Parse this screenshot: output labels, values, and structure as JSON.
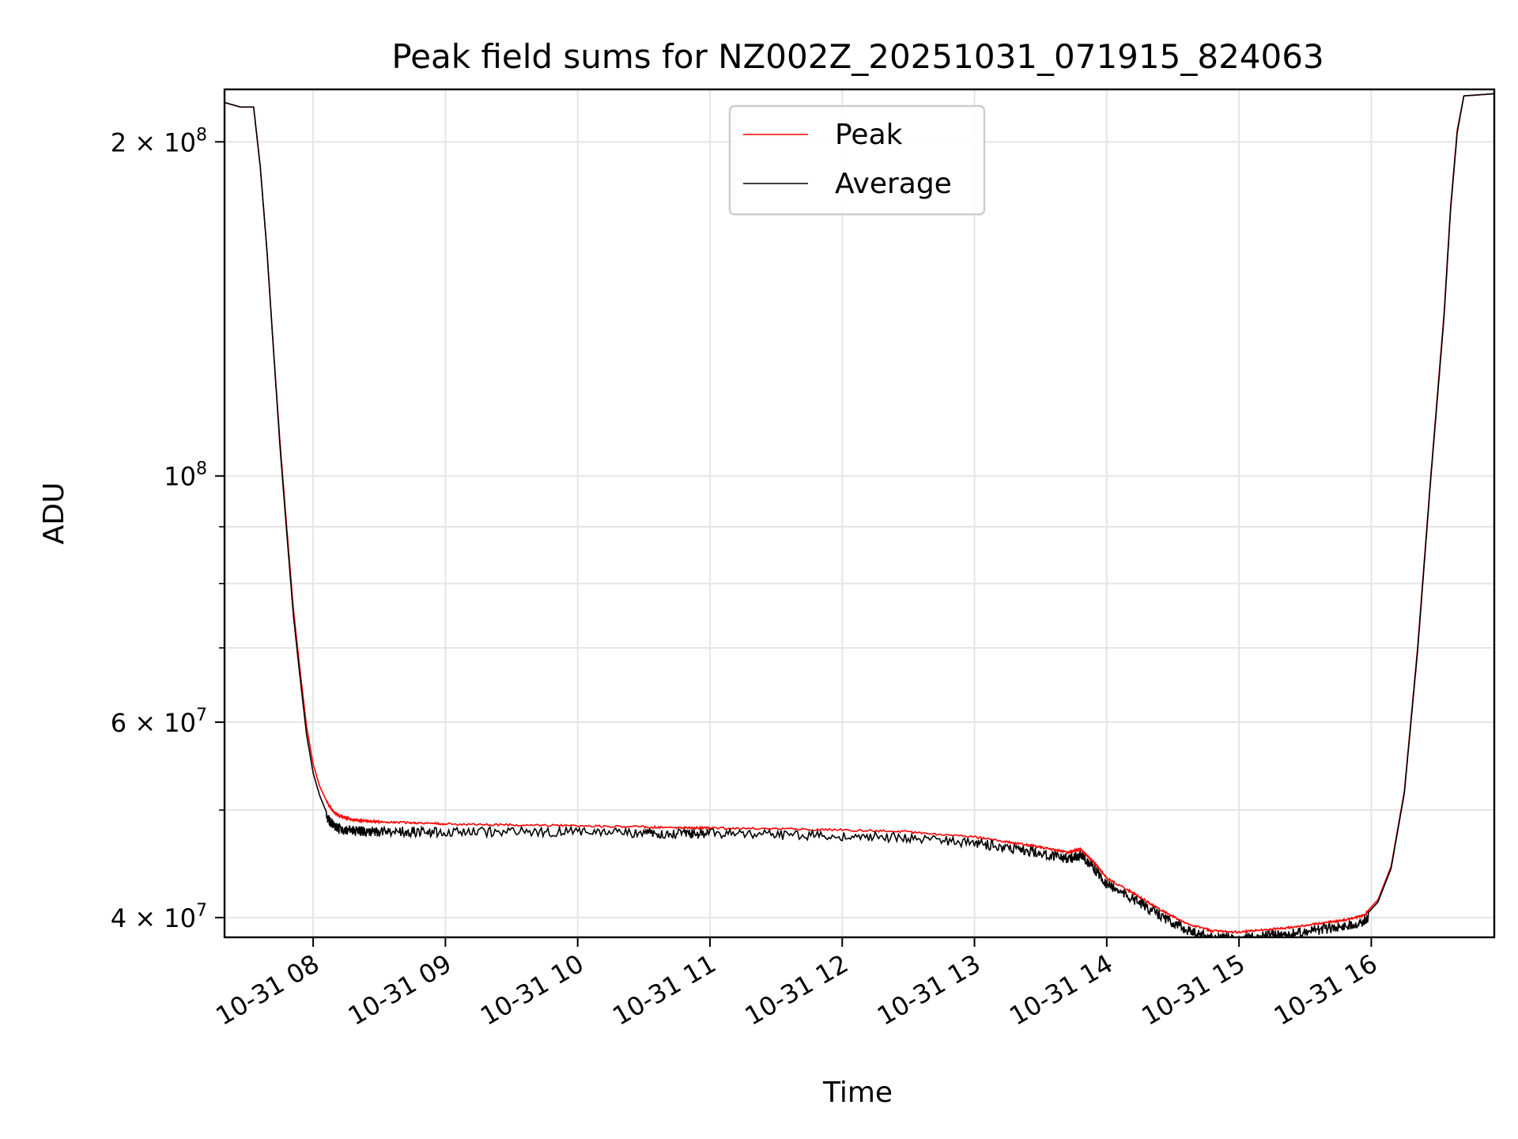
{
  "chart_data": {
    "type": "line",
    "title": "Peak field sums for NZ002Z_20251031_071915_824063",
    "xlabel": "Time",
    "ylabel": "ADU",
    "yscale": "log",
    "xlim": [
      7.33,
      16.93
    ],
    "ylim": [
      38400000,
      223000000
    ],
    "grid": true,
    "legend_position": "top-center",
    "x_ticks": [
      8,
      9,
      10,
      11,
      12,
      13,
      14,
      15,
      16
    ],
    "x_tick_labels": [
      "10-31 08",
      "10-31 09",
      "10-31 10",
      "10-31 11",
      "10-31 12",
      "10-31 13",
      "10-31 14",
      "10-31 15",
      "10-31 16"
    ],
    "y_major_ticks": [
      {
        "value": 200000000,
        "mantissa": "2",
        "exponent": "8"
      },
      {
        "value": 100000000,
        "mantissa": "",
        "exponent": "8"
      },
      {
        "value": 60000000,
        "mantissa": "6",
        "exponent": "7"
      },
      {
        "value": 40000000,
        "mantissa": "4",
        "exponent": "7"
      }
    ],
    "y_minor_ticks": [
      90000000,
      80000000,
      70000000,
      50000000
    ],
    "series": [
      {
        "name": "Peak",
        "color": "#ff0000",
        "x": [
          7.33,
          7.45,
          7.55,
          7.6,
          7.65,
          7.7,
          7.75,
          7.8,
          7.85,
          7.9,
          7.95,
          8.0,
          8.05,
          8.1,
          8.15,
          8.2,
          8.3,
          8.4,
          8.5,
          8.75,
          9.0,
          9.5,
          10.0,
          10.5,
          10.8,
          11.0,
          11.5,
          12.0,
          12.5,
          13.0,
          13.3,
          13.5,
          13.7,
          13.8,
          13.9,
          14.0,
          14.2,
          14.4,
          14.6,
          14.8,
          15.0,
          15.2,
          15.4,
          15.6,
          15.8,
          15.95,
          16.05,
          16.15,
          16.25,
          16.35,
          16.45,
          16.55,
          16.6,
          16.65,
          16.7,
          16.93
        ],
        "y": [
          217000000,
          215000000,
          215000000,
          190000000,
          160000000,
          130000000,
          107000000,
          90000000,
          76000000,
          67000000,
          59500000,
          55000000,
          52500000,
          51000000,
          50000000,
          49500000,
          49100000,
          49000000,
          48900000,
          48800000,
          48700000,
          48600000,
          48500000,
          48400000,
          48300000,
          48300000,
          48200000,
          48100000,
          47900000,
          47400000,
          46800000,
          46400000,
          45900000,
          46200000,
          45000000,
          43500000,
          42200000,
          40800000,
          39600000,
          39000000,
          38900000,
          39100000,
          39300000,
          39600000,
          39900000,
          40300000,
          41500000,
          44500000,
          52000000,
          70000000,
          100000000,
          140000000,
          175000000,
          205000000,
          220000000,
          221000000
        ]
      },
      {
        "name": "Average",
        "color": "#000000",
        "x": [
          7.33,
          7.45,
          7.55,
          7.6,
          7.65,
          7.7,
          7.75,
          7.8,
          7.85,
          7.9,
          7.95,
          8.0,
          8.05,
          8.1,
          8.15,
          8.2,
          8.3,
          8.4,
          8.5,
          8.75,
          9.0,
          9.5,
          10.0,
          10.5,
          10.8,
          11.0,
          11.5,
          12.0,
          12.5,
          13.0,
          13.3,
          13.5,
          13.7,
          13.8,
          13.9,
          14.0,
          14.2,
          14.4,
          14.6,
          14.8,
          15.0,
          15.2,
          15.4,
          15.6,
          15.8,
          15.95,
          16.05,
          16.15,
          16.25,
          16.35,
          16.45,
          16.55,
          16.6,
          16.65,
          16.7,
          16.93
        ],
        "y": [
          217000000,
          215000000,
          215000000,
          190000000,
          160000000,
          130000000,
          106000000,
          89000000,
          75000000,
          66000000,
          58500000,
          54000000,
          51500000,
          49800000,
          49000000,
          48600000,
          48400000,
          48300000,
          48300000,
          48300000,
          48300000,
          48300000,
          48300000,
          48200000,
          48100000,
          48100000,
          48000000,
          47900000,
          47700000,
          47200000,
          46600000,
          46200000,
          45700000,
          46000000,
          44800000,
          43300000,
          42000000,
          40600000,
          39400000,
          38800000,
          38700000,
          38900000,
          39100000,
          39400000,
          39700000,
          40100000,
          41300000,
          44300000,
          51800000,
          69500000,
          99500000,
          139000000,
          174000000,
          204000000,
          220000000,
          221000000
        ]
      }
    ]
  }
}
